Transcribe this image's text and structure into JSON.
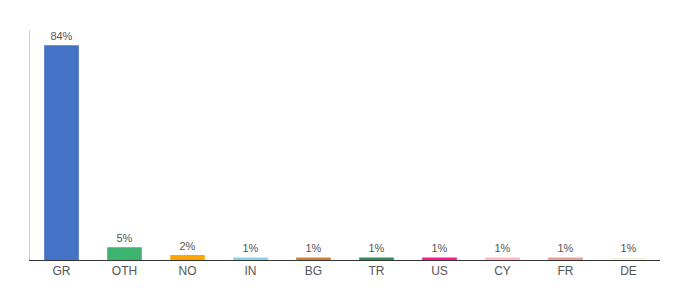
{
  "chart_data": {
    "type": "bar",
    "categories": [
      "GR",
      "OTH",
      "NO",
      "IN",
      "BG",
      "TR",
      "US",
      "CY",
      "FR",
      "DE"
    ],
    "values": [
      84,
      5,
      2,
      1,
      1,
      1,
      1,
      1,
      1,
      1
    ],
    "value_labels": [
      "84%",
      "5%",
      "2%",
      "1%",
      "1%",
      "1%",
      "1%",
      "1%",
      "1%",
      "1%"
    ],
    "colors": [
      "#4472C4",
      "#3CB371",
      "#FFA500",
      "#87CEEB",
      "#CD7F32",
      "#2E8B57",
      "#FF1493",
      "#FFB6C1",
      "#E8A090",
      "#F5F5DC"
    ],
    "ylim": [
      0,
      90
    ],
    "grid": false,
    "data_labels": true,
    "tick_labels": "x"
  }
}
